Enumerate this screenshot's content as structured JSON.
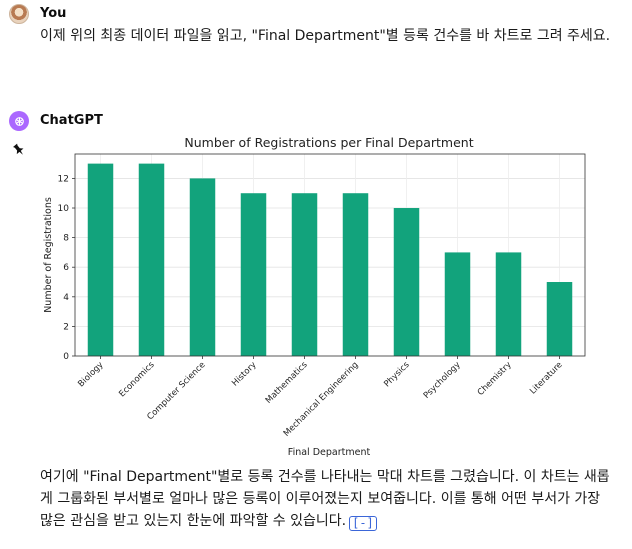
{
  "user": {
    "name": "You",
    "message": "이제 위의 최종 데이터 파일을 읽고, \"Final Department\"별 등록 건수를 바 차트로 그려 주세요."
  },
  "assistant": {
    "name": "ChatGPT",
    "reply": "여기에 \"Final Department\"별로 등록 건수를 나타내는 막대 차트를 그렸습니다. 이 차트는 새롭게 그룹화된 부서별로 얼마나 많은 등록이 이루어졌는지 보여줍니다. 이를 통해 어떤 부서가 가장 많은 관심을 받고 있는지 한눈에 파악할 수 있습니다.",
    "source_icon": "code-bracket-icon"
  },
  "icons": {
    "user_avatar": "avatar-photo-icon",
    "assistant_avatar": "openai-logo-icon",
    "pin": "pushpin-icon"
  },
  "colors": {
    "bar": "#12a37c",
    "assistant_avatar_bg": "#ab68ff",
    "link": "#3b66d8"
  },
  "chart_data": {
    "type": "bar",
    "title": "Number of Registrations per Final Department",
    "xlabel": "Final Department",
    "ylabel": "Number of Registrations",
    "categories": [
      "Biology",
      "Economics",
      "Computer Science",
      "History",
      "Mathematics",
      "Mechanical Engineering",
      "Physics",
      "Psychology",
      "Chemistry",
      "Literature"
    ],
    "values": [
      13,
      13,
      12,
      11,
      11,
      11,
      10,
      7,
      7,
      5
    ],
    "ylim": [
      0,
      13.65
    ],
    "yticks": [
      0,
      2,
      4,
      6,
      8,
      10,
      12
    ],
    "grid": true,
    "legend": "none"
  }
}
